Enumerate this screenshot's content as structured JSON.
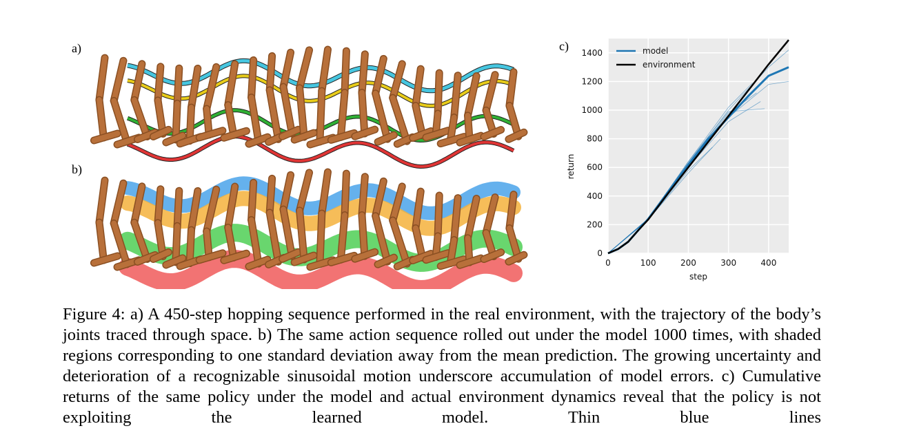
{
  "panels": {
    "a_label": "a)",
    "b_label": "b)",
    "c_label": "c)"
  },
  "colors": {
    "leg": "#b8703a",
    "leg_shade": "#8a4f22",
    "joint_cyan": "#46c6e0",
    "joint_yellow": "#e8cc1a",
    "joint_green": "#2fb034",
    "joint_red": "#e03535",
    "band_blue": "#4aa3ea",
    "band_orange": "#f5b23c",
    "band_green": "#4fcf55",
    "band_red": "#f05a5a",
    "model_line": "#1f77b4",
    "env_line": "#000000",
    "plot_bg": "#ebebeb"
  },
  "chart_data": {
    "type": "line",
    "xlabel": "step",
    "ylabel": "return",
    "xlim": [
      0,
      450
    ],
    "ylim": [
      0,
      1500
    ],
    "xticks": [
      0,
      100,
      200,
      300,
      400
    ],
    "yticks": [
      0,
      200,
      400,
      600,
      800,
      1000,
      1200,
      1400
    ],
    "grid": true,
    "legend_position": "top-left",
    "series": [
      {
        "name": "model",
        "x": [
          0,
          25,
          50,
          75,
          100,
          150,
          200,
          250,
          300,
          350,
          400,
          450
        ],
        "y": [
          0,
          30,
          80,
          160,
          240,
          430,
          620,
          800,
          950,
          1100,
          1240,
          1300
        ]
      },
      {
        "name": "environment",
        "x": [
          0,
          25,
          50,
          75,
          100,
          150,
          200,
          250,
          300,
          350,
          400,
          450
        ],
        "y": [
          0,
          30,
          80,
          160,
          235,
          420,
          600,
          780,
          960,
          1140,
          1320,
          1490
        ]
      }
    ],
    "thin_rollouts": [
      {
        "x": [
          0,
          100,
          200,
          300,
          360
        ],
        "y": [
          0,
          240,
          640,
          1020,
          1190
        ]
      },
      {
        "x": [
          0,
          100,
          200,
          300,
          380
        ],
        "y": [
          0,
          240,
          600,
          920,
          1060
        ]
      },
      {
        "x": [
          0,
          100,
          200,
          280
        ],
        "y": [
          0,
          235,
          560,
          800
        ]
      },
      {
        "x": [
          0,
          100,
          200,
          300,
          400,
          450
        ],
        "y": [
          0,
          238,
          610,
          950,
          1180,
          1200
        ]
      },
      {
        "x": [
          0,
          100,
          200,
          300,
          400,
          450
        ],
        "y": [
          0,
          240,
          630,
          1000,
          1300,
          1420
        ]
      },
      {
        "x": [
          0,
          100,
          200,
          260
        ],
        "y": [
          0,
          232,
          580,
          740
        ]
      },
      {
        "x": [
          0,
          100,
          200,
          300,
          390
        ],
        "y": [
          0,
          242,
          640,
          990,
          1010
        ]
      },
      {
        "x": [
          0,
          100,
          200,
          300,
          370
        ],
        "y": [
          0,
          236,
          620,
          980,
          1120
        ]
      }
    ]
  },
  "caption": "Figure 4: a) A 450-step hopping sequence performed in the real environment, with the trajectory of the body’s joints traced through space. b) The same action sequence rolled out under the model 1000 times, with shaded regions corresponding to one standard deviation away from the mean prediction. The growing uncertainty and deterioration of a recognizable sinusoidal motion underscore accumulation of model errors. c) Cumulative returns of the same policy under the model and actual environment dynamics reveal that the policy is not exploiting the learned model. Thin blue lines"
}
